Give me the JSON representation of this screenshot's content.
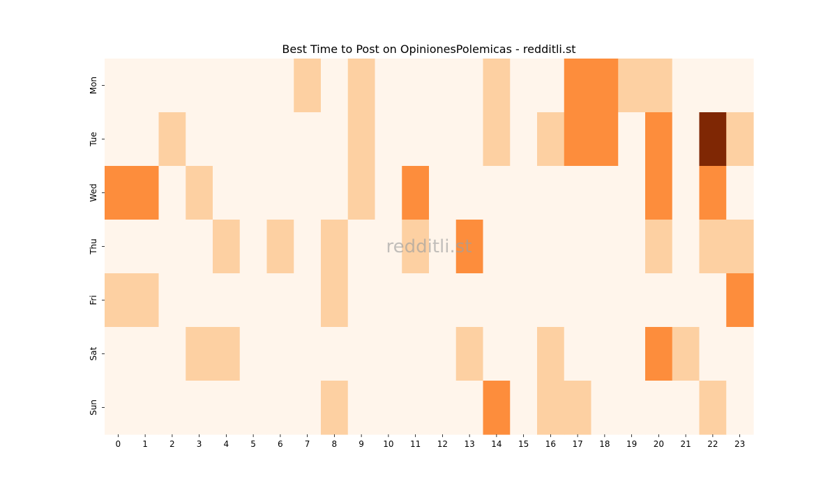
{
  "chart_data": {
    "type": "heatmap",
    "title": "Best Time to Post on OpinionesPolemicas - redditli.st",
    "watermark": "redditli.st",
    "x_labels": [
      "0",
      "1",
      "2",
      "3",
      "4",
      "5",
      "6",
      "7",
      "8",
      "9",
      "10",
      "11",
      "12",
      "13",
      "14",
      "15",
      "16",
      "17",
      "18",
      "19",
      "20",
      "21",
      "22",
      "23"
    ],
    "y_labels": [
      "Mon",
      "Tue",
      "Wed",
      "Thu",
      "Fri",
      "Sat",
      "Sun"
    ],
    "values": [
      [
        0,
        0,
        0,
        0,
        0,
        0,
        0,
        1,
        0,
        1,
        0,
        0,
        0,
        0,
        1,
        0,
        0,
        3,
        3,
        1,
        1,
        0,
        0,
        0
      ],
      [
        0,
        0,
        1,
        0,
        0,
        0,
        0,
        0,
        0,
        1,
        0,
        0,
        0,
        0,
        1,
        0,
        1,
        3,
        3,
        0,
        3,
        0,
        6,
        1
      ],
      [
        3,
        3,
        0,
        1,
        0,
        0,
        0,
        0,
        0,
        1,
        0,
        3,
        0,
        0,
        0,
        0,
        0,
        0,
        0,
        0,
        3,
        0,
        3,
        0
      ],
      [
        0,
        0,
        0,
        0,
        1,
        0,
        1,
        0,
        1,
        0,
        0,
        1,
        0,
        3,
        0,
        0,
        0,
        0,
        0,
        0,
        1,
        0,
        1,
        1
      ],
      [
        1,
        1,
        0,
        0,
        0,
        0,
        0,
        0,
        1,
        0,
        0,
        0,
        0,
        0,
        0,
        0,
        0,
        0,
        0,
        0,
        0,
        0,
        0,
        3
      ],
      [
        0,
        0,
        0,
        1,
        1,
        0,
        0,
        0,
        0,
        0,
        0,
        0,
        0,
        1,
        0,
        0,
        1,
        0,
        0,
        0,
        3,
        1,
        0,
        0
      ],
      [
        0,
        0,
        0,
        0,
        0,
        0,
        0,
        0,
        1,
        0,
        0,
        0,
        0,
        0,
        3,
        0,
        1,
        1,
        0,
        0,
        0,
        0,
        1,
        0
      ]
    ],
    "value_range": [
      0,
      6
    ],
    "colormap": "Oranges",
    "level_colors": {
      "0": "#fff5eb",
      "1": "#fdd0a2",
      "3": "#fd8d3c",
      "6": "#7f2704"
    },
    "colorbar": false,
    "grid": false
  }
}
